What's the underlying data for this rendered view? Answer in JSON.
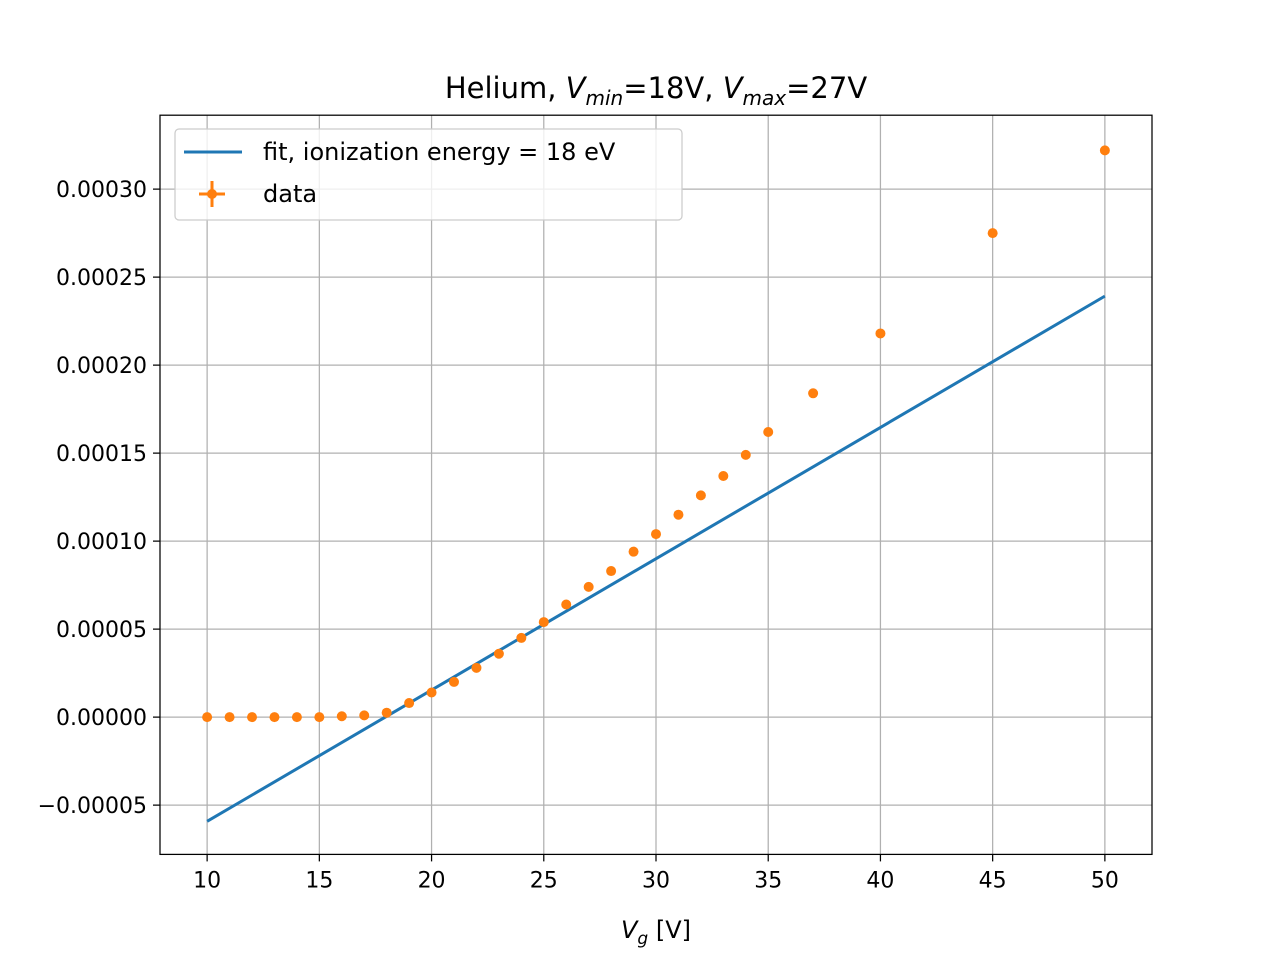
{
  "chart_data": {
    "type": "scatter",
    "title": {
      "prefix": "Helium, ",
      "v1_symbol": "V",
      "v1_sub": "min",
      "v1_value": "=18V, ",
      "v2_symbol": "V",
      "v2_sub": "max",
      "v2_value": "=27V"
    },
    "xlabel": {
      "symbol": "V",
      "sub": "g",
      "unit": " [V]"
    },
    "ylabel": "",
    "xlim": [
      7.9,
      52.1
    ],
    "ylim": [
      -7.8e-05,
      0.000342
    ],
    "xticks": [
      10,
      15,
      20,
      25,
      30,
      35,
      40,
      45,
      50
    ],
    "yticks": [
      -5e-05,
      0.0,
      5e-05,
      0.0001,
      0.00015,
      0.0002,
      0.00025,
      0.0003
    ],
    "ytick_labels": [
      "−0.00005",
      "0.00000",
      "0.00005",
      "0.00010",
      "0.00015",
      "0.00020",
      "0.00025",
      "0.00030"
    ],
    "grid": true,
    "legend_position": "top-left",
    "series": [
      {
        "name": "fit, ionization energy = 18 eV",
        "kind": "line",
        "color": "#1f77b4",
        "x": [
          10,
          50
        ],
        "y": [
          -5.92e-05,
          0.0002392
        ]
      },
      {
        "name": "data",
        "kind": "errorbar",
        "color": "#ff7f0e",
        "x": [
          10,
          11,
          12,
          13,
          14,
          15,
          16,
          17,
          18,
          19,
          20,
          21,
          22,
          23,
          24,
          25,
          26,
          27,
          28,
          29,
          30,
          31,
          32,
          33,
          34,
          35,
          37,
          40,
          45,
          50
        ],
        "y": [
          0.0,
          0.0,
          0.0,
          0.0,
          0.0,
          0.0,
          5e-07,
          1e-06,
          2.5e-06,
          8e-06,
          1.4e-05,
          2e-05,
          2.8e-05,
          3.6e-05,
          4.5e-05,
          5.4e-05,
          6.4e-05,
          7.4e-05,
          8.3e-05,
          9.4e-05,
          0.000104,
          0.000115,
          0.000126,
          0.000137,
          0.000149,
          0.000162,
          0.000184,
          0.000218,
          0.000275,
          0.000322
        ]
      }
    ]
  }
}
